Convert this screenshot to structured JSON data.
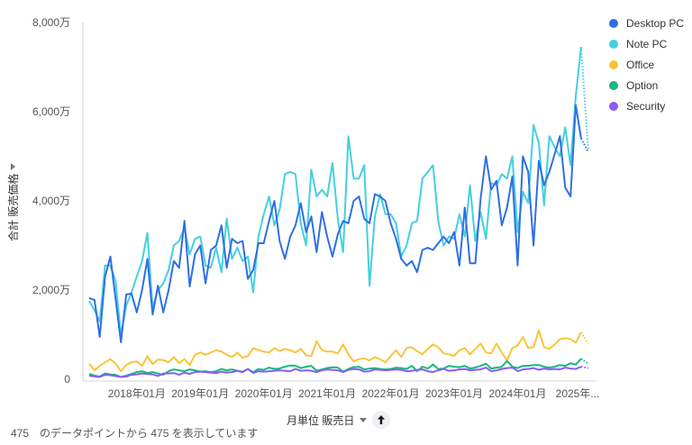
{
  "y_axis": {
    "label": "合計 販売価格",
    "ticks": [
      "0",
      "2,000万",
      "4,000万",
      "6,000万",
      "8,000万"
    ]
  },
  "x_axis": {
    "label": "月単位 販売日",
    "ticks": [
      "2018年01月",
      "2019年01月",
      "2020年01月",
      "2021年01月",
      "2022年01月",
      "2023年01月",
      "2024年01月",
      "2025年..."
    ]
  },
  "footer": {
    "text": "475　のデータポイントから 475 を表示しています"
  },
  "legend": [
    {
      "name": "Desktop PC",
      "color": "#2f6fe4"
    },
    {
      "name": "Note PC",
      "color": "#45cfe0"
    },
    {
      "name": "Office",
      "color": "#f9c43a"
    },
    {
      "name": "Option",
      "color": "#16b97d"
    },
    {
      "name": "Security",
      "color": "#8b5cf6"
    }
  ],
  "chart_data": {
    "type": "line",
    "title": "",
    "xlabel": "月単位 販売日",
    "ylabel": "合計 販売価格",
    "ylim": [
      0,
      80000000
    ],
    "unit": "万",
    "x_start": "2017-04",
    "x_end": "2025-06",
    "x_tick_labels": [
      "2018年01月",
      "2019年01月",
      "2020年01月",
      "2021年01月",
      "2022年01月",
      "2023年01月",
      "2024年01月",
      "2025年..."
    ],
    "legend_position": "right",
    "grid": false,
    "series": [
      {
        "name": "Desktop PC",
        "color": "#2f6fe4",
        "values": [
          1820,
          1780,
          950,
          2300,
          2750,
          1800,
          830,
          1900,
          1920,
          1500,
          2000,
          2700,
          1450,
          2100,
          1500,
          2000,
          2650,
          2500,
          3550,
          2080,
          2800,
          3000,
          2150,
          2900,
          3000,
          3450,
          2500,
          3150,
          3050,
          3100,
          2250,
          2450,
          3050,
          3050,
          3550,
          4000,
          3100,
          2700,
          3200,
          3450,
          3950,
          3300,
          3650,
          2850,
          3750,
          3200,
          2750,
          3250,
          3550,
          3500,
          4000,
          4100,
          3600,
          3500,
          4150,
          4100,
          4000,
          3500,
          3150,
          2700,
          2550,
          2650,
          2400,
          2900,
          2950,
          2900,
          3050,
          3200,
          3050,
          3300,
          2550,
          3850,
          2600,
          2600,
          4050,
          5000,
          4250,
          4450,
          3450,
          3850,
          4550,
          2550,
          5000,
          4650,
          3000,
          4900,
          4350,
          4650,
          5050,
          5450,
          4300,
          4100,
          6150,
          5400,
          5100
        ]
      },
      {
        "name": "Note PC",
        "color": "#45cfe0",
        "values": [
          1750,
          1550,
          1300,
          2550,
          2550,
          2200,
          1000,
          1650,
          1950,
          2300,
          2650,
          3280,
          1600,
          2000,
          2150,
          2450,
          3000,
          3100,
          3400,
          2800,
          3150,
          3200,
          2550,
          2500,
          2950,
          2400,
          3600,
          2700,
          2950,
          2650,
          2750,
          1950,
          3200,
          3700,
          4100,
          3450,
          3800,
          4600,
          4650,
          4600,
          3500,
          3000,
          4700,
          4100,
          4250,
          4100,
          4850,
          3600,
          2850,
          5450,
          4500,
          4500,
          4800,
          2100,
          3650,
          4150,
          3700,
          3700,
          3500,
          2750,
          3000,
          3500,
          3550,
          4500,
          4650,
          4800,
          3550,
          3000,
          3200,
          3150,
          3700,
          3200,
          4350,
          3100,
          3750,
          3150,
          4400,
          4350,
          4600,
          4500,
          5000,
          3300,
          4200,
          3950,
          5700,
          5300,
          3900,
          5450,
          5200,
          5000,
          5650,
          4800,
          6350,
          7450,
          5150
        ]
      },
      {
        "name": "Office",
        "color": "#f9c43a",
        "values": [
          350,
          200,
          300,
          380,
          450,
          350,
          180,
          320,
          380,
          400,
          300,
          520,
          340,
          440,
          430,
          380,
          500,
          360,
          450,
          320,
          550,
          600,
          550,
          600,
          650,
          620,
          550,
          500,
          600,
          480,
          520,
          700,
          650,
          620,
          600,
          700,
          630,
          680,
          650,
          600,
          680,
          540,
          520,
          850,
          650,
          620,
          620,
          580,
          780,
          560,
          400,
          450,
          470,
          420,
          500,
          450,
          380,
          520,
          650,
          500,
          700,
          720,
          630,
          560,
          680,
          780,
          720,
          580,
          560,
          520,
          650,
          700,
          560,
          680,
          800,
          600,
          580,
          800,
          600,
          420,
          700,
          760,
          950,
          700,
          720,
          1100,
          720,
          680,
          780,
          900,
          920,
          900,
          820,
          1050,
          800
        ]
      },
      {
        "name": "Option",
        "color": "#16b97d",
        "values": [
          120,
          80,
          60,
          130,
          110,
          100,
          50,
          80,
          120,
          160,
          180,
          140,
          160,
          130,
          100,
          180,
          220,
          200,
          180,
          220,
          200,
          170,
          180,
          160,
          180,
          230,
          200,
          220,
          190,
          170,
          230,
          160,
          230,
          210,
          260,
          230,
          240,
          280,
          310,
          300,
          250,
          280,
          300,
          190,
          220,
          250,
          270,
          260,
          170,
          230,
          270,
          280,
          220,
          240,
          250,
          230,
          220,
          230,
          260,
          250,
          230,
          300,
          180,
          280,
          240,
          330,
          230,
          240,
          300,
          280,
          270,
          300,
          240,
          260,
          300,
          350,
          240,
          260,
          280,
          410,
          280,
          250,
          300,
          300,
          320,
          320,
          280,
          260,
          280,
          320,
          300,
          360,
          330,
          460,
          350
        ]
      },
      {
        "name": "Security",
        "color": "#8b5cf6",
        "values": [
          80,
          60,
          50,
          100,
          90,
          70,
          50,
          60,
          100,
          110,
          130,
          120,
          110,
          70,
          130,
          130,
          140,
          100,
          150,
          120,
          160,
          170,
          160,
          150,
          140,
          170,
          150,
          160,
          190,
          160,
          230,
          140,
          180,
          170,
          180,
          190,
          200,
          190,
          180,
          230,
          190,
          200,
          190,
          160,
          200,
          220,
          210,
          200,
          160,
          210,
          230,
          220,
          170,
          180,
          220,
          210,
          200,
          210,
          220,
          210,
          180,
          190,
          210,
          220,
          180,
          160,
          200,
          230,
          190,
          200,
          220,
          230,
          200,
          210,
          220,
          260,
          180,
          200,
          230,
          250,
          260,
          180,
          220,
          230,
          250,
          210,
          240,
          220,
          230,
          220,
          260,
          240,
          230,
          280,
          250
        ]
      }
    ]
  }
}
